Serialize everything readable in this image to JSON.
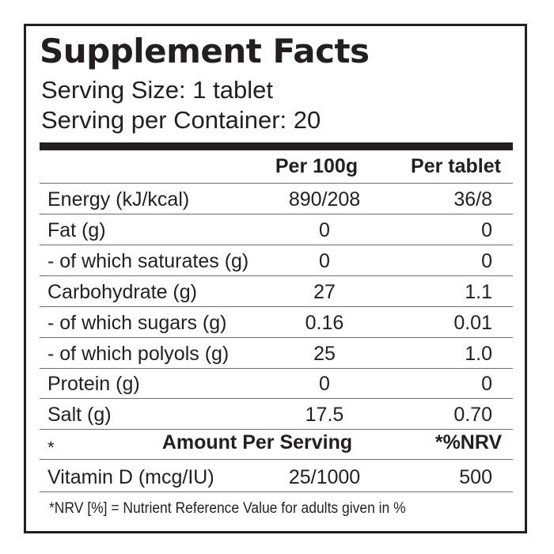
{
  "title": "Supplement Facts",
  "serving_size": "Serving Size: 1 tablet",
  "servings_per_container": "Serving per Container: 20",
  "table": {
    "columns": [
      "Per 100g",
      "Per tablet"
    ],
    "rows": [
      [
        "Energy (kJ/kcal)",
        "890/208",
        "36/8"
      ],
      [
        "Fat (g)",
        "0",
        "0"
      ],
      [
        "- of which saturates (g)",
        "0",
        "0"
      ],
      [
        "Carbohydrate (g)",
        "27",
        "1.1"
      ],
      [
        "- of which sugars (g)",
        "0.16",
        "0.01"
      ],
      [
        "- of which polyols (g)",
        "25",
        "1.0"
      ],
      [
        "Protein (g)",
        "0",
        "0"
      ],
      [
        "Salt (g)",
        "17.5",
        "0.70"
      ]
    ]
  },
  "vitamins": {
    "marker": "*",
    "header": "Amount Per Serving",
    "nrv_header": "*%NRV",
    "rows": [
      [
        "Vitamin D (mcg/IU)",
        "25/1000",
        "500"
      ]
    ]
  },
  "footnote": "*NRV [%] = Nutrient Reference Value for adults given in %"
}
